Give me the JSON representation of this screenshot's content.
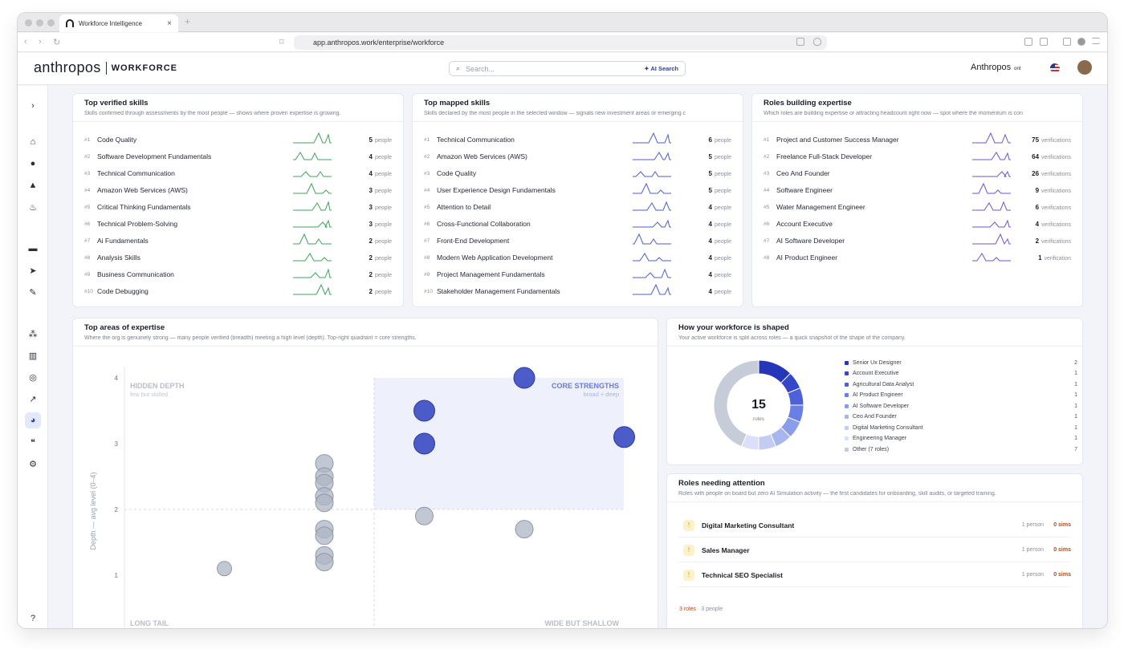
{
  "browser": {
    "tab_title": "Workforce Intelligence",
    "url": "app.anthropos.work/enterprise/workforce"
  },
  "app": {
    "logo": "anthropos",
    "section": "WORKFORCE",
    "search_placeholder": "Search...",
    "ai_search": "✦ AI Search",
    "brand": "Anthropos",
    "brand_suffix": "ont"
  },
  "verified": {
    "title": "Top verified skills",
    "subtitle": "Skills confirmed through assessments by the most people — shows where proven expertise is growing.",
    "color": "#3fa35a",
    "unit": "people",
    "rows": [
      {
        "rank": "#1",
        "name": "Code Quality",
        "count": "5"
      },
      {
        "rank": "#2",
        "name": "Software Development Fundamentals",
        "count": "4"
      },
      {
        "rank": "#3",
        "name": "Technical Communication",
        "count": "4"
      },
      {
        "rank": "#4",
        "name": "Amazon Web Services (AWS)",
        "count": "3"
      },
      {
        "rank": "#5",
        "name": "Critical Thinking Fundamentals",
        "count": "3"
      },
      {
        "rank": "#6",
        "name": "Technical Problem-Solving",
        "count": "3"
      },
      {
        "rank": "#7",
        "name": "Ai Fundamentals",
        "count": "2"
      },
      {
        "rank": "#8",
        "name": "Analysis Skills",
        "count": "2"
      },
      {
        "rank": "#9",
        "name": "Business Communication",
        "count": "2"
      },
      {
        "rank": "#10",
        "name": "Code Debugging",
        "count": "2"
      }
    ]
  },
  "mapped": {
    "title": "Top mapped skills",
    "subtitle": "Skills declared by the most people in the selected window — signals new investment areas or emerging c",
    "color": "#4a5fd0",
    "unit": "people",
    "rows": [
      {
        "rank": "#1",
        "name": "Technical Communication",
        "count": "6"
      },
      {
        "rank": "#2",
        "name": "Amazon Web Services (AWS)",
        "count": "5"
      },
      {
        "rank": "#3",
        "name": "Code Quality",
        "count": "5"
      },
      {
        "rank": "#4",
        "name": "User Experience Design Fundamentals",
        "count": "5"
      },
      {
        "rank": "#5",
        "name": "Attention to Detail",
        "count": "4"
      },
      {
        "rank": "#6",
        "name": "Cross-Functional Collaboration",
        "count": "4"
      },
      {
        "rank": "#7",
        "name": "Front-End Development",
        "count": "4"
      },
      {
        "rank": "#8",
        "name": "Modern Web Application Development",
        "count": "4"
      },
      {
        "rank": "#9",
        "name": "Project Management Fundamentals",
        "count": "4"
      },
      {
        "rank": "#10",
        "name": "Stakeholder Management Fundamentals",
        "count": "4"
      }
    ]
  },
  "roles": {
    "title": "Roles building expertise",
    "subtitle": "Which roles are building expertise or attracting headcount right now — spot where the momentum is con",
    "color": "#6a56d6",
    "rows": [
      {
        "rank": "#1",
        "name": "Project and Customer Success Manager",
        "count": "75",
        "unit": "verifications"
      },
      {
        "rank": "#2",
        "name": "Freelance Full-Stack Developer",
        "count": "64",
        "unit": "verifications"
      },
      {
        "rank": "#3",
        "name": "Ceo And Founder",
        "count": "26",
        "unit": "verifications"
      },
      {
        "rank": "#4",
        "name": "Software Engineer",
        "count": "9",
        "unit": "verifications"
      },
      {
        "rank": "#5",
        "name": "Water Management Engineer",
        "count": "6",
        "unit": "verifications"
      },
      {
        "rank": "#6",
        "name": "Account Executive",
        "count": "4",
        "unit": "verifications"
      },
      {
        "rank": "#7",
        "name": "AI Software Developer",
        "count": "2",
        "unit": "verifications"
      },
      {
        "rank": "#8",
        "name": "AI Product Engineer",
        "count": "1",
        "unit": "verification"
      }
    ]
  },
  "areas": {
    "title": "Top areas of expertise",
    "subtitle": "Where the org is genuinely strong — many people verified (breadth) meeting a high level (depth). Top-right quadrant = core strengths.",
    "ylabel": "Depth — avg level (0–4)",
    "q_hidden": "HIDDEN DEPTH",
    "q_hidden_sub": "few but skilled",
    "q_core": "CORE STRENGTHS",
    "q_core_sub": "broad + deep",
    "q_long": "LONG TAIL",
    "q_wide": "WIDE BUT SHALLOW"
  },
  "chart_data": {
    "type": "scatter",
    "ylabel": "Depth — avg level (0–4)",
    "ylim": [
      0.6,
      4.2
    ],
    "yticks": [
      1,
      2,
      3,
      4
    ],
    "xlim": [
      0,
      6
    ],
    "points": [
      {
        "x": 1,
        "y": 1.1,
        "core": false
      },
      {
        "x": 2,
        "y": 2.7,
        "core": false
      },
      {
        "x": 2,
        "y": 2.5,
        "core": false
      },
      {
        "x": 2,
        "y": 2.4,
        "core": false
      },
      {
        "x": 2,
        "y": 2.2,
        "core": false
      },
      {
        "x": 2,
        "y": 2.1,
        "core": false
      },
      {
        "x": 2,
        "y": 1.7,
        "core": false
      },
      {
        "x": 2,
        "y": 1.6,
        "core": false
      },
      {
        "x": 2,
        "y": 1.3,
        "core": false
      },
      {
        "x": 2,
        "y": 1.2,
        "core": false
      },
      {
        "x": 3,
        "y": 3.5,
        "core": true
      },
      {
        "x": 3,
        "y": 3.0,
        "core": true
      },
      {
        "x": 3,
        "y": 1.9,
        "core": false
      },
      {
        "x": 4,
        "y": 4.0,
        "core": true
      },
      {
        "x": 4,
        "y": 1.7,
        "core": false
      },
      {
        "x": 5,
        "y": 3.1,
        "core": true
      }
    ]
  },
  "shape": {
    "title": "How your workforce is shaped",
    "subtitle": "Your active workforce is split across roles — a quick snapshot of the shape of the company.",
    "total": "15",
    "total_label": "roles",
    "items": [
      {
        "name": "Senior Ux Designer",
        "count": "2",
        "value": 2,
        "color": "#2536b8"
      },
      {
        "name": "Account Executive",
        "count": "1",
        "value": 1,
        "color": "#3547c9"
      },
      {
        "name": "Agricultural Data Analyst",
        "count": "1",
        "value": 1,
        "color": "#4d62d8"
      },
      {
        "name": "AI Product Engineer",
        "count": "1",
        "value": 1,
        "color": "#6a7fe3"
      },
      {
        "name": "AI Software Developer",
        "count": "1",
        "value": 1,
        "color": "#8a9cea"
      },
      {
        "name": "Ceo And Founder",
        "count": "1",
        "value": 1,
        "color": "#a8b6f0"
      },
      {
        "name": "Digital Marketing Consultant",
        "count": "1",
        "value": 1,
        "color": "#c3cdf4"
      },
      {
        "name": "Engineering Manager",
        "count": "1",
        "value": 1,
        "color": "#dae0f8"
      },
      {
        "name": "Other (7 roles)",
        "count": "7",
        "value": 7,
        "color": "#c6ccd8"
      }
    ]
  },
  "attention": {
    "title": "Roles needing attention",
    "subtitle": "Roles with people on board but zero AI Simulation activity — the first candidates for onboarding, skill audits, or targeted training.",
    "rows": [
      {
        "name": "Digital Marketing Consultant",
        "people": "1 person",
        "sims": "0 sims"
      },
      {
        "name": "Sales Manager",
        "people": "1 person",
        "sims": "0 sims"
      },
      {
        "name": "Technical SEO Specialist",
        "people": "1 person",
        "sims": "0 sims"
      }
    ],
    "footer_roles": "3 roles",
    "footer_sep": "·",
    "footer_people": "3 people"
  }
}
